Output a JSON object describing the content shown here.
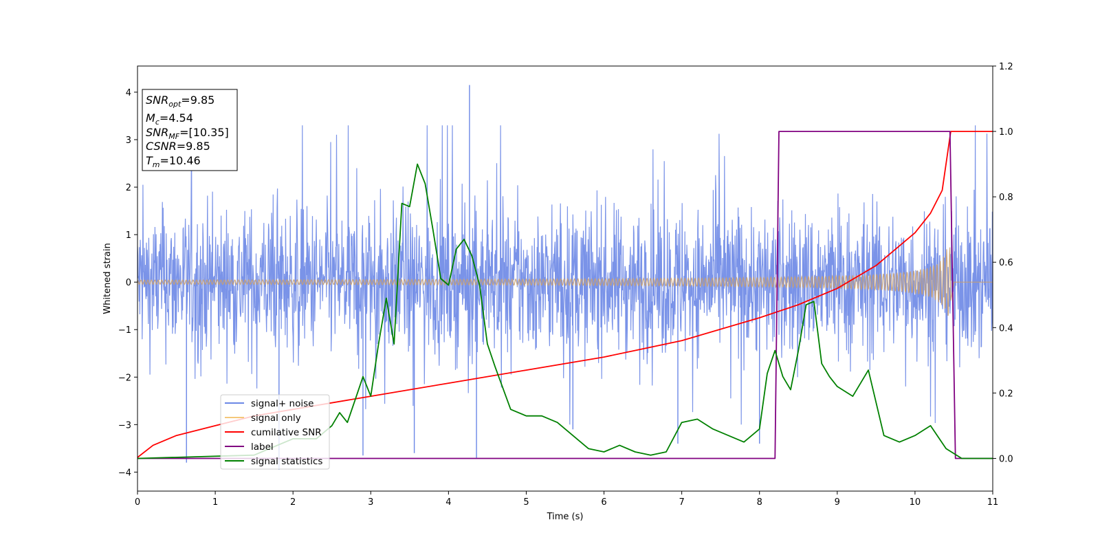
{
  "chart_data": {
    "type": "line",
    "xlabel": "Time (s)",
    "ylabel": "Whitened strain",
    "xlim": [
      0,
      11
    ],
    "ylim_left": [
      -4.4,
      4.55
    ],
    "ylim_right": [
      -0.1,
      1.2
    ],
    "xticks": [
      "0",
      "1",
      "2",
      "3",
      "4",
      "5",
      "6",
      "7",
      "8",
      "9",
      "10",
      "11"
    ],
    "yticks_left": [
      "−4",
      "−3",
      "−2",
      "−1",
      "0",
      "1",
      "2",
      "3",
      "4"
    ],
    "yticks_right": [
      "0.0",
      "0.2",
      "0.4",
      "0.6",
      "0.8",
      "1.0",
      "1.2"
    ],
    "legend_position": "lower-left",
    "info_box": {
      "snr_opt": {
        "name": "SNR",
        "sub": "opt",
        "value": "=9.85"
      },
      "mc": {
        "name": "M",
        "sub": "c",
        "value": "=4.54"
      },
      "snr_mf": {
        "name": "SNR",
        "sub": "MF",
        "value": "=[10.35]"
      },
      "csnr": {
        "name": "CSNR",
        "sub": "",
        "value": "=9.85"
      },
      "tm": {
        "name": "T",
        "sub": "m",
        "value": "=10.46"
      }
    },
    "series": [
      {
        "name": "signal+ noise",
        "color": "#6b87e6",
        "axis": "left",
        "envelope_min": -1.8,
        "envelope_max": 2.2,
        "spikes_x": [
          0.63,
          1.82,
          2.9,
          3.56,
          4.27,
          4.36,
          5.6,
          6.95,
          8.0
        ],
        "spikes_y": [
          -3.8,
          -3.95,
          -3.65,
          -3.6,
          4.15,
          -3.7,
          -3.1,
          -3.4,
          -3.4
        ],
        "t_end": 11.0
      },
      {
        "name": "signal only",
        "color": "#f5c77a",
        "axis": "left",
        "amplitude_start": 0.05,
        "amplitude_end": 0.75,
        "t_merger": 10.46
      },
      {
        "name": "cumilative SNR",
        "color": "#ff0000",
        "axis": "right",
        "x": [
          0,
          0.2,
          0.5,
          1,
          1.5,
          2,
          3,
          4,
          5,
          6,
          7,
          8,
          8.5,
          9,
          9.5,
          10,
          10.2,
          10.35,
          10.46,
          11
        ],
        "y": [
          0.003,
          0.04,
          0.07,
          0.1,
          0.13,
          0.15,
          0.19,
          0.23,
          0.27,
          0.31,
          0.36,
          0.43,
          0.47,
          0.52,
          0.59,
          0.69,
          0.75,
          0.82,
          1.0,
          1.0
        ]
      },
      {
        "name": "label",
        "color": "#800080",
        "axis": "right",
        "x": [
          0,
          8.2,
          8.25,
          10.45,
          10.52,
          11
        ],
        "y": [
          0.0,
          0.0,
          1.0,
          1.0,
          0.0,
          0.0
        ]
      },
      {
        "name": "signal statistics",
        "color": "#008000",
        "axis": "right",
        "x": [
          0,
          1.5,
          2.0,
          2.3,
          2.5,
          2.6,
          2.7,
          2.8,
          2.9,
          3.0,
          3.1,
          3.2,
          3.3,
          3.4,
          3.5,
          3.6,
          3.7,
          3.8,
          3.9,
          4.0,
          4.1,
          4.2,
          4.3,
          4.4,
          4.5,
          4.6,
          4.8,
          5.0,
          5.2,
          5.4,
          5.6,
          5.8,
          6.0,
          6.2,
          6.4,
          6.6,
          6.8,
          7.0,
          7.2,
          7.4,
          7.6,
          7.8,
          8.0,
          8.1,
          8.2,
          8.3,
          8.4,
          8.5,
          8.6,
          8.7,
          8.8,
          8.9,
          9.0,
          9.2,
          9.4,
          9.6,
          9.8,
          10.0,
          10.2,
          10.4,
          10.6,
          11.0
        ],
        "y": [
          0.0,
          0.01,
          0.06,
          0.06,
          0.1,
          0.14,
          0.11,
          0.18,
          0.25,
          0.19,
          0.35,
          0.49,
          0.35,
          0.78,
          0.77,
          0.9,
          0.84,
          0.7,
          0.55,
          0.53,
          0.64,
          0.67,
          0.62,
          0.53,
          0.35,
          0.28,
          0.15,
          0.13,
          0.13,
          0.11,
          0.07,
          0.03,
          0.02,
          0.04,
          0.02,
          0.01,
          0.02,
          0.11,
          0.12,
          0.09,
          0.07,
          0.05,
          0.09,
          0.26,
          0.33,
          0.25,
          0.21,
          0.33,
          0.47,
          0.48,
          0.29,
          0.25,
          0.22,
          0.19,
          0.27,
          0.07,
          0.05,
          0.07,
          0.1,
          0.03,
          0.0,
          0.0
        ]
      }
    ]
  }
}
